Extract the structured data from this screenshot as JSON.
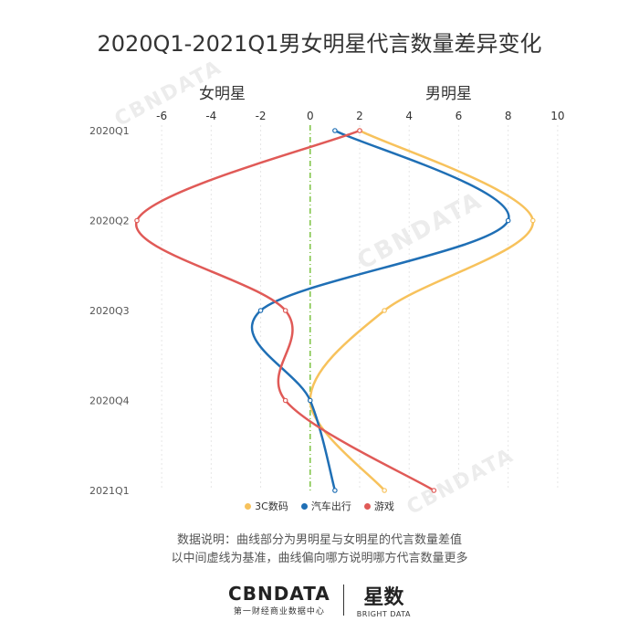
{
  "title": "2020Q1-2021Q1男女明星代言数量差异变化",
  "side_labels": {
    "female": "女明星",
    "male": "男明星"
  },
  "note": {
    "line1": "数据说明：曲线部分为男明星与女明星的代言数量差值",
    "line2": "以中间虚线为基准，曲线偏向哪方说明哪方代言数量更多"
  },
  "footer": {
    "brand": "CBNDATA",
    "brand_sub": "第一财经商业数据中心",
    "brand2": "星数",
    "brand2_sub": "BRIGHT DATA"
  },
  "watermark": "CBNDATA",
  "colors": {
    "3c": "#f7c25c",
    "car": "#1f6fb5",
    "game": "#e05a57",
    "zero_line": "#7cc242"
  },
  "chart_data": {
    "type": "line",
    "orientation": "horizontal-value-axis",
    "categories": [
      "2020Q1",
      "2020Q2",
      "2020Q3",
      "2020Q4",
      "2021Q1"
    ],
    "xlim": [
      -7,
      11
    ],
    "x_ticks": [
      -6,
      -4,
      -2,
      0,
      2,
      4,
      6,
      8,
      10
    ],
    "grid": true,
    "legend_position": "bottom",
    "series": [
      {
        "name": "3C数码",
        "color": "#f7c25c",
        "values": [
          2,
          9,
          3,
          0,
          3
        ]
      },
      {
        "name": "汽车出行",
        "color": "#1f6fb5",
        "values": [
          1,
          8,
          -2,
          0,
          1
        ]
      },
      {
        "name": "游戏",
        "color": "#e05a57",
        "values": [
          2,
          -7,
          -1,
          -1,
          5
        ]
      }
    ]
  }
}
